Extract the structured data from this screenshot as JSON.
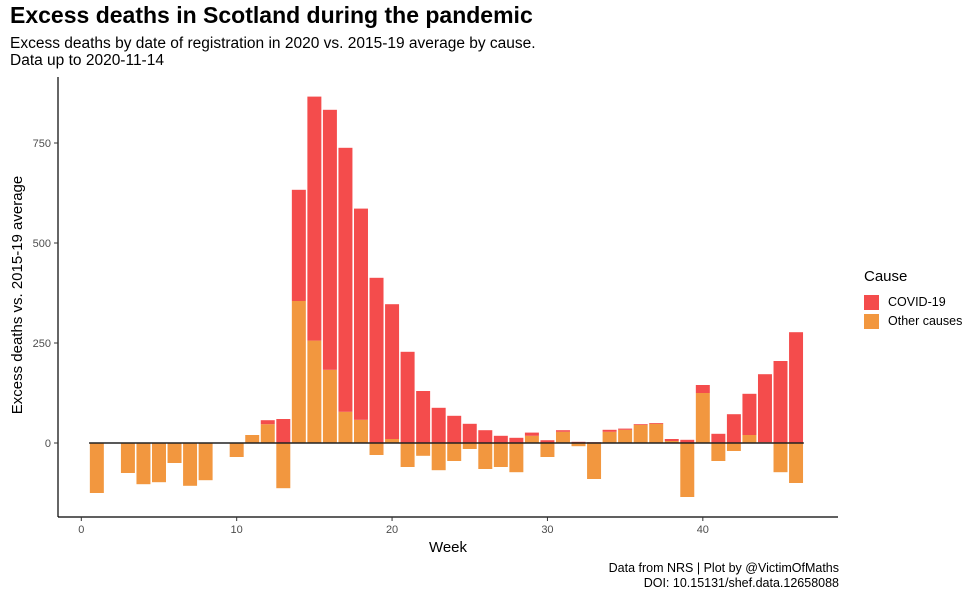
{
  "title": "Excess deaths in Scotland during the pandemic",
  "subtitle_line1": "Excess deaths by date of registration in 2020 vs. 2015-19 average by cause.",
  "subtitle_line2": "Data up to 2020-11-14",
  "caption_line1": "Data from NRS | Plot by @VictimOfMaths",
  "caption_line2": "DOI: 10.15131/shef.data.12658088",
  "colors": {
    "covid": "#f44c4c",
    "other": "#f2973f"
  },
  "legend": {
    "title": "Cause",
    "items": [
      "COVID-19",
      "Other causes"
    ]
  },
  "chart_data": {
    "type": "bar",
    "stacked": true,
    "xlabel": "Week",
    "ylabel": "Excess deaths vs. 2015-19 average",
    "xlim": [
      -1.5,
      48.7
    ],
    "ylim": [
      -185,
      915
    ],
    "xticks": [
      0,
      10,
      20,
      30,
      40
    ],
    "yticks": [
      0,
      250,
      500,
      750
    ],
    "legend_position": "right",
    "grid": false,
    "x": [
      1,
      2,
      3,
      4,
      5,
      6,
      7,
      8,
      9,
      10,
      11,
      12,
      13,
      14,
      15,
      16,
      17,
      18,
      19,
      20,
      21,
      22,
      23,
      24,
      25,
      26,
      27,
      28,
      29,
      30,
      31,
      32,
      33,
      34,
      35,
      36,
      37,
      38,
      39,
      40,
      41,
      42,
      43,
      44,
      45,
      46
    ],
    "series": [
      {
        "name": "Other causes",
        "values": [
          -125,
          0,
          -75,
          -103,
          -98,
          -50,
          -107,
          -93,
          0,
          -35,
          20,
          47,
          -113,
          355,
          256,
          183,
          78,
          58,
          -30,
          10,
          -60,
          -32,
          -68,
          -45,
          -15,
          -65,
          -60,
          -73,
          18,
          -35,
          28,
          -8,
          -90,
          28,
          33,
          45,
          48,
          5,
          -135,
          125,
          -45,
          -20,
          20,
          2,
          -73,
          -100
        ]
      },
      {
        "name": "COVID-19",
        "values": [
          0,
          0,
          0,
          0,
          0,
          0,
          0,
          0,
          0,
          0,
          0,
          10,
          60,
          278,
          610,
          650,
          660,
          528,
          413,
          337,
          228,
          130,
          88,
          68,
          48,
          32,
          18,
          13,
          8,
          7,
          4,
          3,
          2,
          5,
          3,
          2,
          2,
          5,
          8,
          20,
          23,
          72,
          103,
          170,
          205,
          277
        ]
      }
    ]
  }
}
